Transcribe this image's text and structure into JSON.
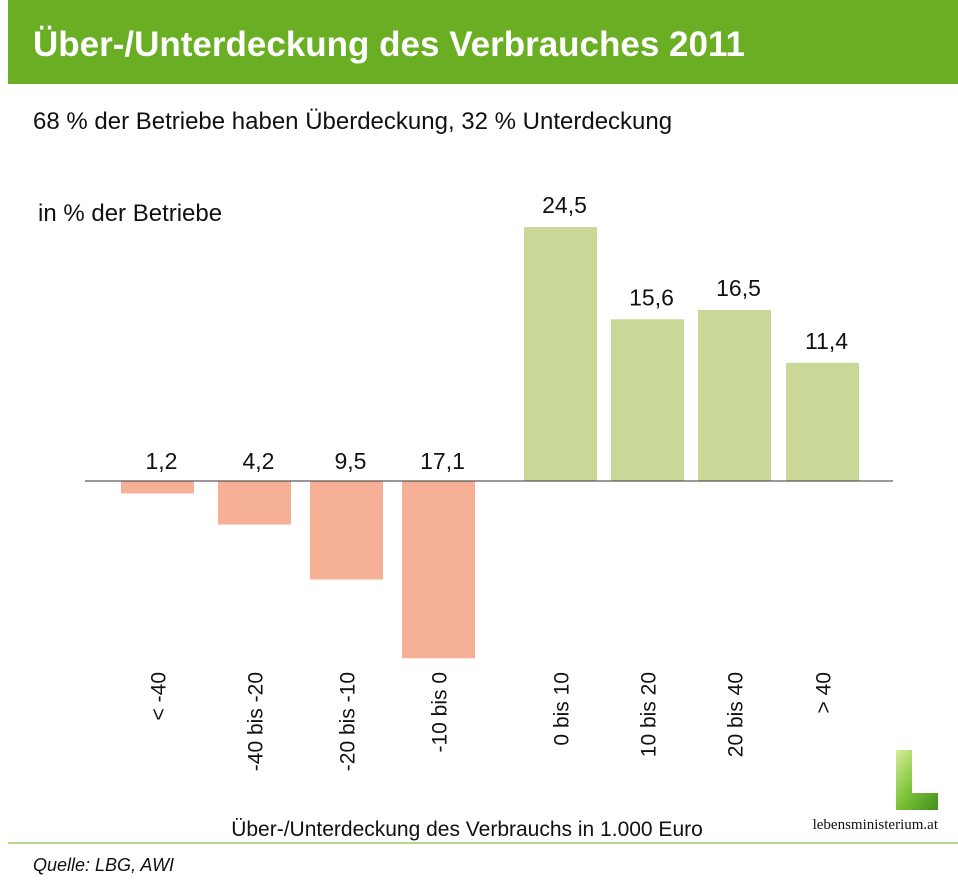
{
  "header": {
    "title": "Über-/Unterdeckung des Verbrauches 2011",
    "color": "#6aaf23"
  },
  "subtitle": "68 % der Betriebe haben Überdeckung, 32 % Unterdeckung",
  "source": "Quelle: LBG, AWI",
  "logo": {
    "text": "lebensministerium.at"
  },
  "chart_data": {
    "type": "bar",
    "title": "Über-/Unterdeckung des Verbrauches 2011",
    "ylabel": "in % der Betriebe",
    "xlabel": "Über-/Unterdeckung des Verbrauchs in 1.000 Euro",
    "categories": [
      "< -40",
      "-40 bis -20",
      "-20 bis -10",
      "-10 bis 0",
      "0 bis 10",
      "10 bis 20",
      "20 bis 40",
      "> 40"
    ],
    "values": [
      -1.2,
      -4.2,
      -9.5,
      -17.1,
      24.5,
      15.6,
      16.5,
      11.4
    ],
    "labels": [
      "1,2",
      "4,2",
      "9,5",
      "17,1",
      "24,5",
      "15,6",
      "16,5",
      "11,4"
    ],
    "colors": {
      "negative": "#f5b096",
      "positive": "#c9d897"
    },
    "grid": false
  }
}
